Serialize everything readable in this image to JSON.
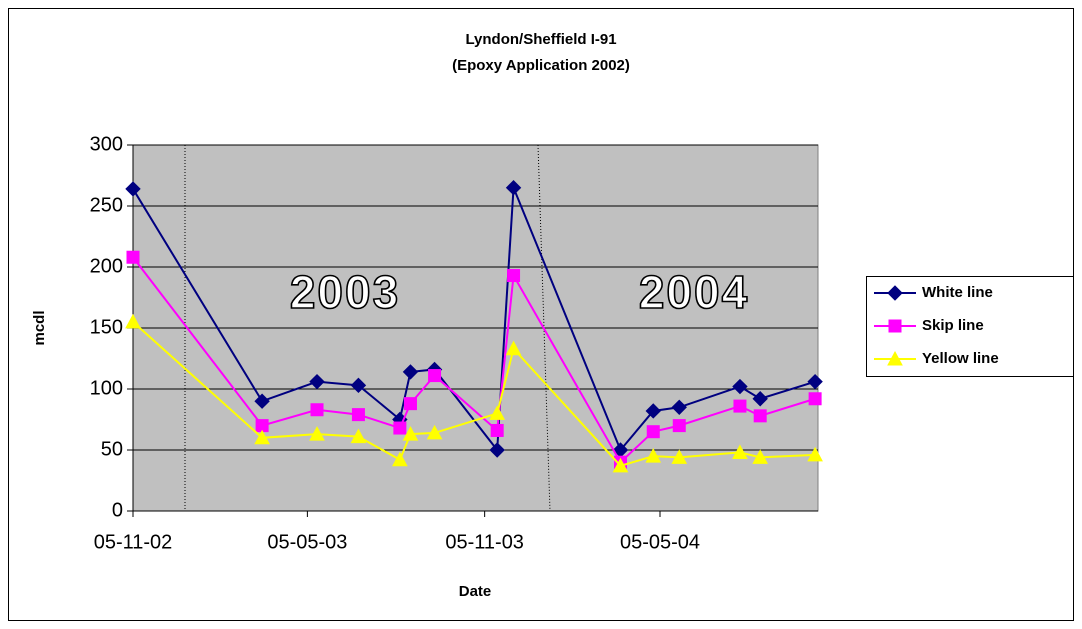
{
  "chart_data": {
    "type": "line",
    "title": "Lyndon/Sheffield I-91",
    "subtitle": "(Epoxy Application 2002)",
    "x_label": "Date",
    "y_label": "mcdl",
    "annotations": [
      "2003",
      "2004"
    ],
    "x": [
      "2002-11-05",
      "2003-03-19",
      "2003-05-15",
      "2003-06-27",
      "2003-08-09",
      "2003-08-20",
      "2003-09-14",
      "2003-11-18",
      "2003-12-05",
      "2004-03-25",
      "2004-04-28",
      "2004-05-25",
      "2004-07-27",
      "2004-08-17",
      "2004-10-13"
    ],
    "series": [
      {
        "name": "White line",
        "color": "#000080",
        "marker": "diamond",
        "values": [
          264,
          90,
          106,
          103,
          75,
          114,
          116,
          50,
          265,
          50,
          82,
          85,
          102,
          92,
          106
        ]
      },
      {
        "name": "Skip line",
        "color": "#ff00ff",
        "marker": "square",
        "values": [
          208,
          70,
          83,
          79,
          68,
          88,
          111,
          66,
          193,
          40,
          65,
          70,
          86,
          78,
          92
        ]
      },
      {
        "name": "Yellow line",
        "color": "#ffff00",
        "marker": "triangle",
        "values": [
          155,
          60,
          63,
          61,
          42,
          63,
          64,
          80,
          133,
          37,
          45,
          44,
          48,
          44,
          46
        ]
      }
    ],
    "xlim": [
      "2002-11-05",
      "2004-10-16"
    ],
    "xticks": [
      {
        "value": "2002-11-05",
        "label": "05-11-02"
      },
      {
        "value": "2003-05-05",
        "label": "05-05-03"
      },
      {
        "value": "2003-11-05",
        "label": "05-11-03"
      },
      {
        "value": "2004-05-05",
        "label": "05-05-04"
      }
    ],
    "ylim": [
      0,
      300
    ],
    "yticks": [
      0,
      50,
      100,
      150,
      200,
      250,
      300
    ],
    "grid": true,
    "legend": "right"
  }
}
